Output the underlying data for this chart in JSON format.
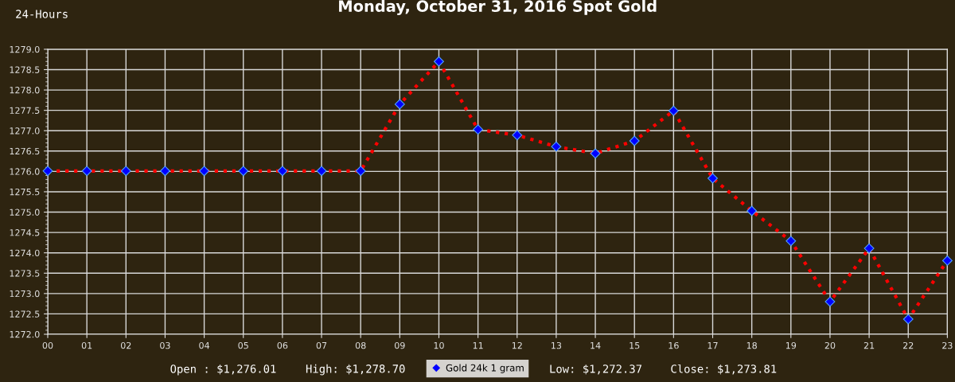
{
  "chart_data": {
    "type": "line",
    "title": "Monday, October 31, 2016 Spot Gold",
    "categories": [
      "00",
      "01",
      "02",
      "03",
      "04",
      "05",
      "06",
      "07",
      "08",
      "09",
      "10",
      "11",
      "12",
      "13",
      "14",
      "15",
      "16",
      "17",
      "18",
      "19",
      "20",
      "21",
      "22",
      "23"
    ],
    "series": [
      {
        "name": "Gold 24k 1 gram",
        "color": "#ff0000",
        "values": [
          1276.01,
          1276.01,
          1276.01,
          1276.01,
          1276.01,
          1276.01,
          1276.01,
          1276.01,
          1276.01,
          1277.65,
          1278.7,
          1277.03,
          1276.89,
          1276.61,
          1276.44,
          1276.75,
          1277.49,
          1275.83,
          1275.03,
          1274.29,
          1272.8,
          1274.11,
          1272.37,
          1273.81
        ]
      }
    ],
    "ylim": [
      1272.0,
      1279.0
    ],
    "yticks": [
      {
        "value": 1272,
        "label": "1272.0"
      },
      {
        "value": 1272.5,
        "label": "1272.5"
      },
      {
        "value": 1273,
        "label": "1273.0"
      },
      {
        "value": 1273.5,
        "label": "1273.5"
      },
      {
        "value": 1274,
        "label": "1274.0"
      },
      {
        "value": 1274.5,
        "label": "1274.5"
      },
      {
        "value": 1275,
        "label": "1275.0"
      },
      {
        "value": 1275.5,
        "label": "1275.5"
      },
      {
        "value": 1276,
        "label": "1276.0"
      },
      {
        "value": 1276.5,
        "label": "1276.5"
      },
      {
        "value": 1277,
        "label": "1277.0"
      },
      {
        "value": 1277.5,
        "label": "1277.5"
      },
      {
        "value": 1278,
        "label": "1278.0"
      },
      {
        "value": 1278.5,
        "label": "1278.5"
      },
      {
        "value": 1279,
        "label": "1279.0"
      }
    ],
    "grid": true,
    "legend": "bottom",
    "marker": "diamond",
    "line_style": "dotted",
    "annotations": [
      "24-Hours",
      "Open : $1,276.01",
      "High: $1,278.70",
      "Low: $1,272.37",
      "Close: $1,273.81"
    ]
  }
}
